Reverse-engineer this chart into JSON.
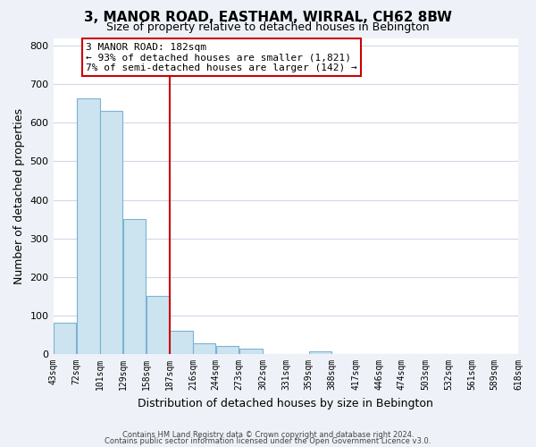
{
  "title": "3, MANOR ROAD, EASTHAM, WIRRAL, CH62 8BW",
  "subtitle": "Size of property relative to detached houses in Bebington",
  "xlabel": "Distribution of detached houses by size in Bebington",
  "ylabel": "Number of detached properties",
  "bar_left_edges": [
    43,
    72,
    101,
    129,
    158,
    187,
    216,
    244,
    273,
    302,
    331,
    359,
    388,
    417,
    446,
    474,
    503,
    532,
    561,
    589
  ],
  "bar_widths": [
    29,
    29,
    28,
    29,
    29,
    29,
    28,
    29,
    29,
    29,
    28,
    29,
    29,
    29,
    28,
    29,
    29,
    29,
    28,
    29
  ],
  "bar_heights": [
    82,
    663,
    630,
    350,
    150,
    60,
    27,
    20,
    13,
    0,
    0,
    8,
    0,
    0,
    0,
    0,
    0,
    0,
    0,
    0
  ],
  "bar_color": "#cce4f0",
  "bar_edge_color": "#7ab3d3",
  "vline_x": 187,
  "vline_color": "#cc0000",
  "ylim": [
    0,
    820
  ],
  "xlim": [
    43,
    618
  ],
  "tick_labels": [
    "43sqm",
    "72sqm",
    "101sqm",
    "129sqm",
    "158sqm",
    "187sqm",
    "216sqm",
    "244sqm",
    "273sqm",
    "302sqm",
    "331sqm",
    "359sqm",
    "388sqm",
    "417sqm",
    "446sqm",
    "474sqm",
    "503sqm",
    "532sqm",
    "561sqm",
    "589sqm",
    "618sqm"
  ],
  "tick_positions": [
    43,
    72,
    101,
    129,
    158,
    187,
    216,
    244,
    273,
    302,
    331,
    359,
    388,
    417,
    446,
    474,
    503,
    532,
    561,
    589,
    618
  ],
  "annotation_title": "3 MANOR ROAD: 182sqm",
  "annotation_line1": "← 93% of detached houses are smaller (1,821)",
  "annotation_line2": "7% of semi-detached houses are larger (142) →",
  "footer1": "Contains HM Land Registry data © Crown copyright and database right 2024.",
  "footer2": "Contains public sector information licensed under the Open Government Licence v3.0.",
  "background_color": "#eef2f8",
  "plot_bg_color": "#ffffff",
  "grid_color": "#d0d8e8",
  "title_fontsize": 11,
  "subtitle_fontsize": 9,
  "ylabel_fontsize": 9,
  "xlabel_fontsize": 9,
  "tick_fontsize": 7,
  "annot_fontsize": 8,
  "footer_fontsize": 6
}
